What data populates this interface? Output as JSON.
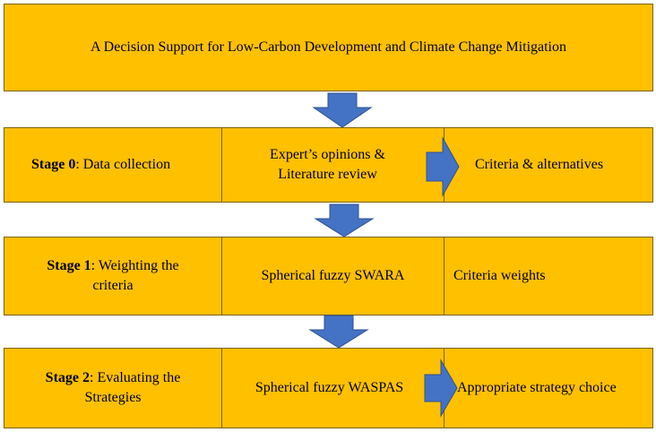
{
  "title": "A Decision Support for Low-Carbon Development and Climate Change Mitigation",
  "colors": {
    "box_fill": "#FFC000",
    "box_border": "#7F6000",
    "arrow_fill": "#4472C4",
    "arrow_stroke": "#2F528F"
  },
  "stages": [
    {
      "label_bold": "Stage 0",
      "label_rest": ": Data collection",
      "method_line1": "Expert’s opinions &",
      "method_line2": "Literature review",
      "output": "Criteria & alternatives"
    },
    {
      "label_bold": "Stage 1",
      "label_rest_line1": ": Weighting the",
      "label_rest_line2": "criteria",
      "method": "Spherical fuzzy SWARA",
      "output": "Criteria weights"
    },
    {
      "label_bold": "Stage 2",
      "label_rest_line1": ": Evaluating the",
      "label_rest_line2": "Strategies",
      "method": "Spherical fuzzy WASPAS",
      "output": "Appropriate strategy choice"
    }
  ]
}
